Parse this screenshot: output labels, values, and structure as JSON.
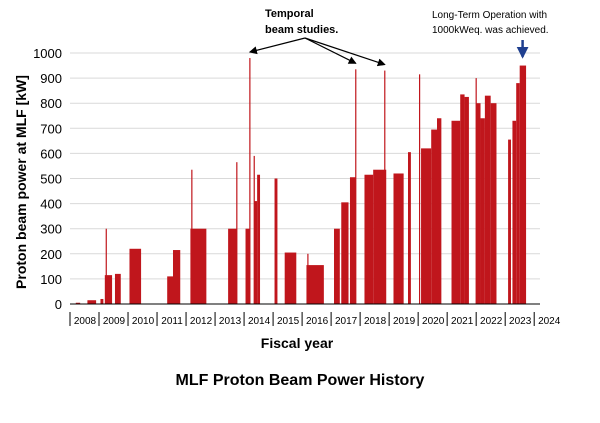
{
  "caption": "MLF Proton Beam Power History",
  "chart_data": {
    "type": "bar",
    "title": "",
    "xlabel": "Fiscal year",
    "ylabel": "Proton beam power at MLF [kW]",
    "ylim": [
      0,
      1000
    ],
    "yticks": [
      0,
      100,
      200,
      300,
      400,
      500,
      600,
      700,
      800,
      900,
      1000
    ],
    "xlim": [
      2008,
      2024.2
    ],
    "grid": "horizontal",
    "legend": "none",
    "bar_color": "#c0161c",
    "arrow_color": "#1f3f8f",
    "year_ticks": [
      "2008",
      "2009",
      "2010",
      "2011",
      "2012",
      "2013",
      "2014",
      "2015",
      "2016",
      "2017",
      "2018",
      "2019",
      "2020",
      "2021",
      "2022",
      "2023",
      "2024"
    ],
    "spikes": [
      {
        "x": 2009.25,
        "value": 300
      },
      {
        "x": 2012.2,
        "value": 535
      },
      {
        "x": 2013.75,
        "value": 565
      },
      {
        "x": 2014.2,
        "value": 980
      },
      {
        "x": 2014.35,
        "value": 590
      },
      {
        "x": 2016.2,
        "value": 200
      },
      {
        "x": 2017.85,
        "value": 935
      },
      {
        "x": 2018.85,
        "value": 930
      },
      {
        "x": 2020.05,
        "value": 915
      },
      {
        "x": 2022.0,
        "value": 900
      }
    ],
    "segments": [
      {
        "x0": 2008.2,
        "x1": 2008.35,
        "value": 5
      },
      {
        "x0": 2008.6,
        "x1": 2008.9,
        "value": 15
      },
      {
        "x0": 2009.05,
        "x1": 2009.15,
        "value": 20
      },
      {
        "x0": 2009.2,
        "x1": 2009.45,
        "value": 115
      },
      {
        "x0": 2009.55,
        "x1": 2009.75,
        "value": 120
      },
      {
        "x0": 2010.05,
        "x1": 2010.45,
        "value": 220
      },
      {
        "x0": 2011.35,
        "x1": 2011.55,
        "value": 110
      },
      {
        "x0": 2011.55,
        "x1": 2011.8,
        "value": 215
      },
      {
        "x0": 2012.15,
        "x1": 2012.7,
        "value": 300
      },
      {
        "x0": 2013.45,
        "x1": 2013.75,
        "value": 300
      },
      {
        "x0": 2014.05,
        "x1": 2014.2,
        "value": 300
      },
      {
        "x0": 2014.35,
        "x1": 2014.45,
        "value": 410
      },
      {
        "x0": 2014.45,
        "x1": 2014.55,
        "value": 515
      },
      {
        "x0": 2015.05,
        "x1": 2015.15,
        "value": 500
      },
      {
        "x0": 2015.4,
        "x1": 2015.8,
        "value": 205
      },
      {
        "x0": 2016.15,
        "x1": 2016.75,
        "value": 155
      },
      {
        "x0": 2017.1,
        "x1": 2017.3,
        "value": 300
      },
      {
        "x0": 2017.35,
        "x1": 2017.6,
        "value": 405
      },
      {
        "x0": 2017.65,
        "x1": 2017.85,
        "value": 505
      },
      {
        "x0": 2018.15,
        "x1": 2018.45,
        "value": 515
      },
      {
        "x0": 2018.45,
        "x1": 2018.9,
        "value": 535
      },
      {
        "x0": 2019.15,
        "x1": 2019.5,
        "value": 520
      },
      {
        "x0": 2019.65,
        "x1": 2019.75,
        "value": 605
      },
      {
        "x0": 2020.1,
        "x1": 2020.45,
        "value": 620
      },
      {
        "x0": 2020.45,
        "x1": 2020.65,
        "value": 695
      },
      {
        "x0": 2020.65,
        "x1": 2020.8,
        "value": 740
      },
      {
        "x0": 2021.15,
        "x1": 2021.45,
        "value": 730
      },
      {
        "x0": 2021.45,
        "x1": 2021.6,
        "value": 835
      },
      {
        "x0": 2021.6,
        "x1": 2021.75,
        "value": 825
      },
      {
        "x0": 2022.0,
        "x1": 2022.15,
        "value": 800
      },
      {
        "x0": 2022.15,
        "x1": 2022.3,
        "value": 740
      },
      {
        "x0": 2022.3,
        "x1": 2022.5,
        "value": 830
      },
      {
        "x0": 2022.5,
        "x1": 2022.7,
        "value": 800
      },
      {
        "x0": 2023.1,
        "x1": 2023.2,
        "value": 655
      },
      {
        "x0": 2023.25,
        "x1": 2023.38,
        "value": 730
      },
      {
        "x0": 2023.38,
        "x1": 2023.5,
        "value": 880
      },
      {
        "x0": 2023.5,
        "x1": 2023.72,
        "value": 950
      }
    ],
    "annotations": [
      {
        "id": "temporal",
        "lines": [
          "Temporal",
          "beam studies."
        ],
        "bold": true,
        "points_to_x": [
          2014.2,
          2017.85,
          2018.85
        ],
        "points_to_value": [
          980,
          935,
          930
        ]
      },
      {
        "id": "long-term",
        "lines": [
          "Long-Term Operation with",
          "1000kWeq. was achieved."
        ],
        "bold": false,
        "points_to_x": [
          2023.6
        ],
        "points_to_value": [
          985
        ]
      }
    ]
  }
}
